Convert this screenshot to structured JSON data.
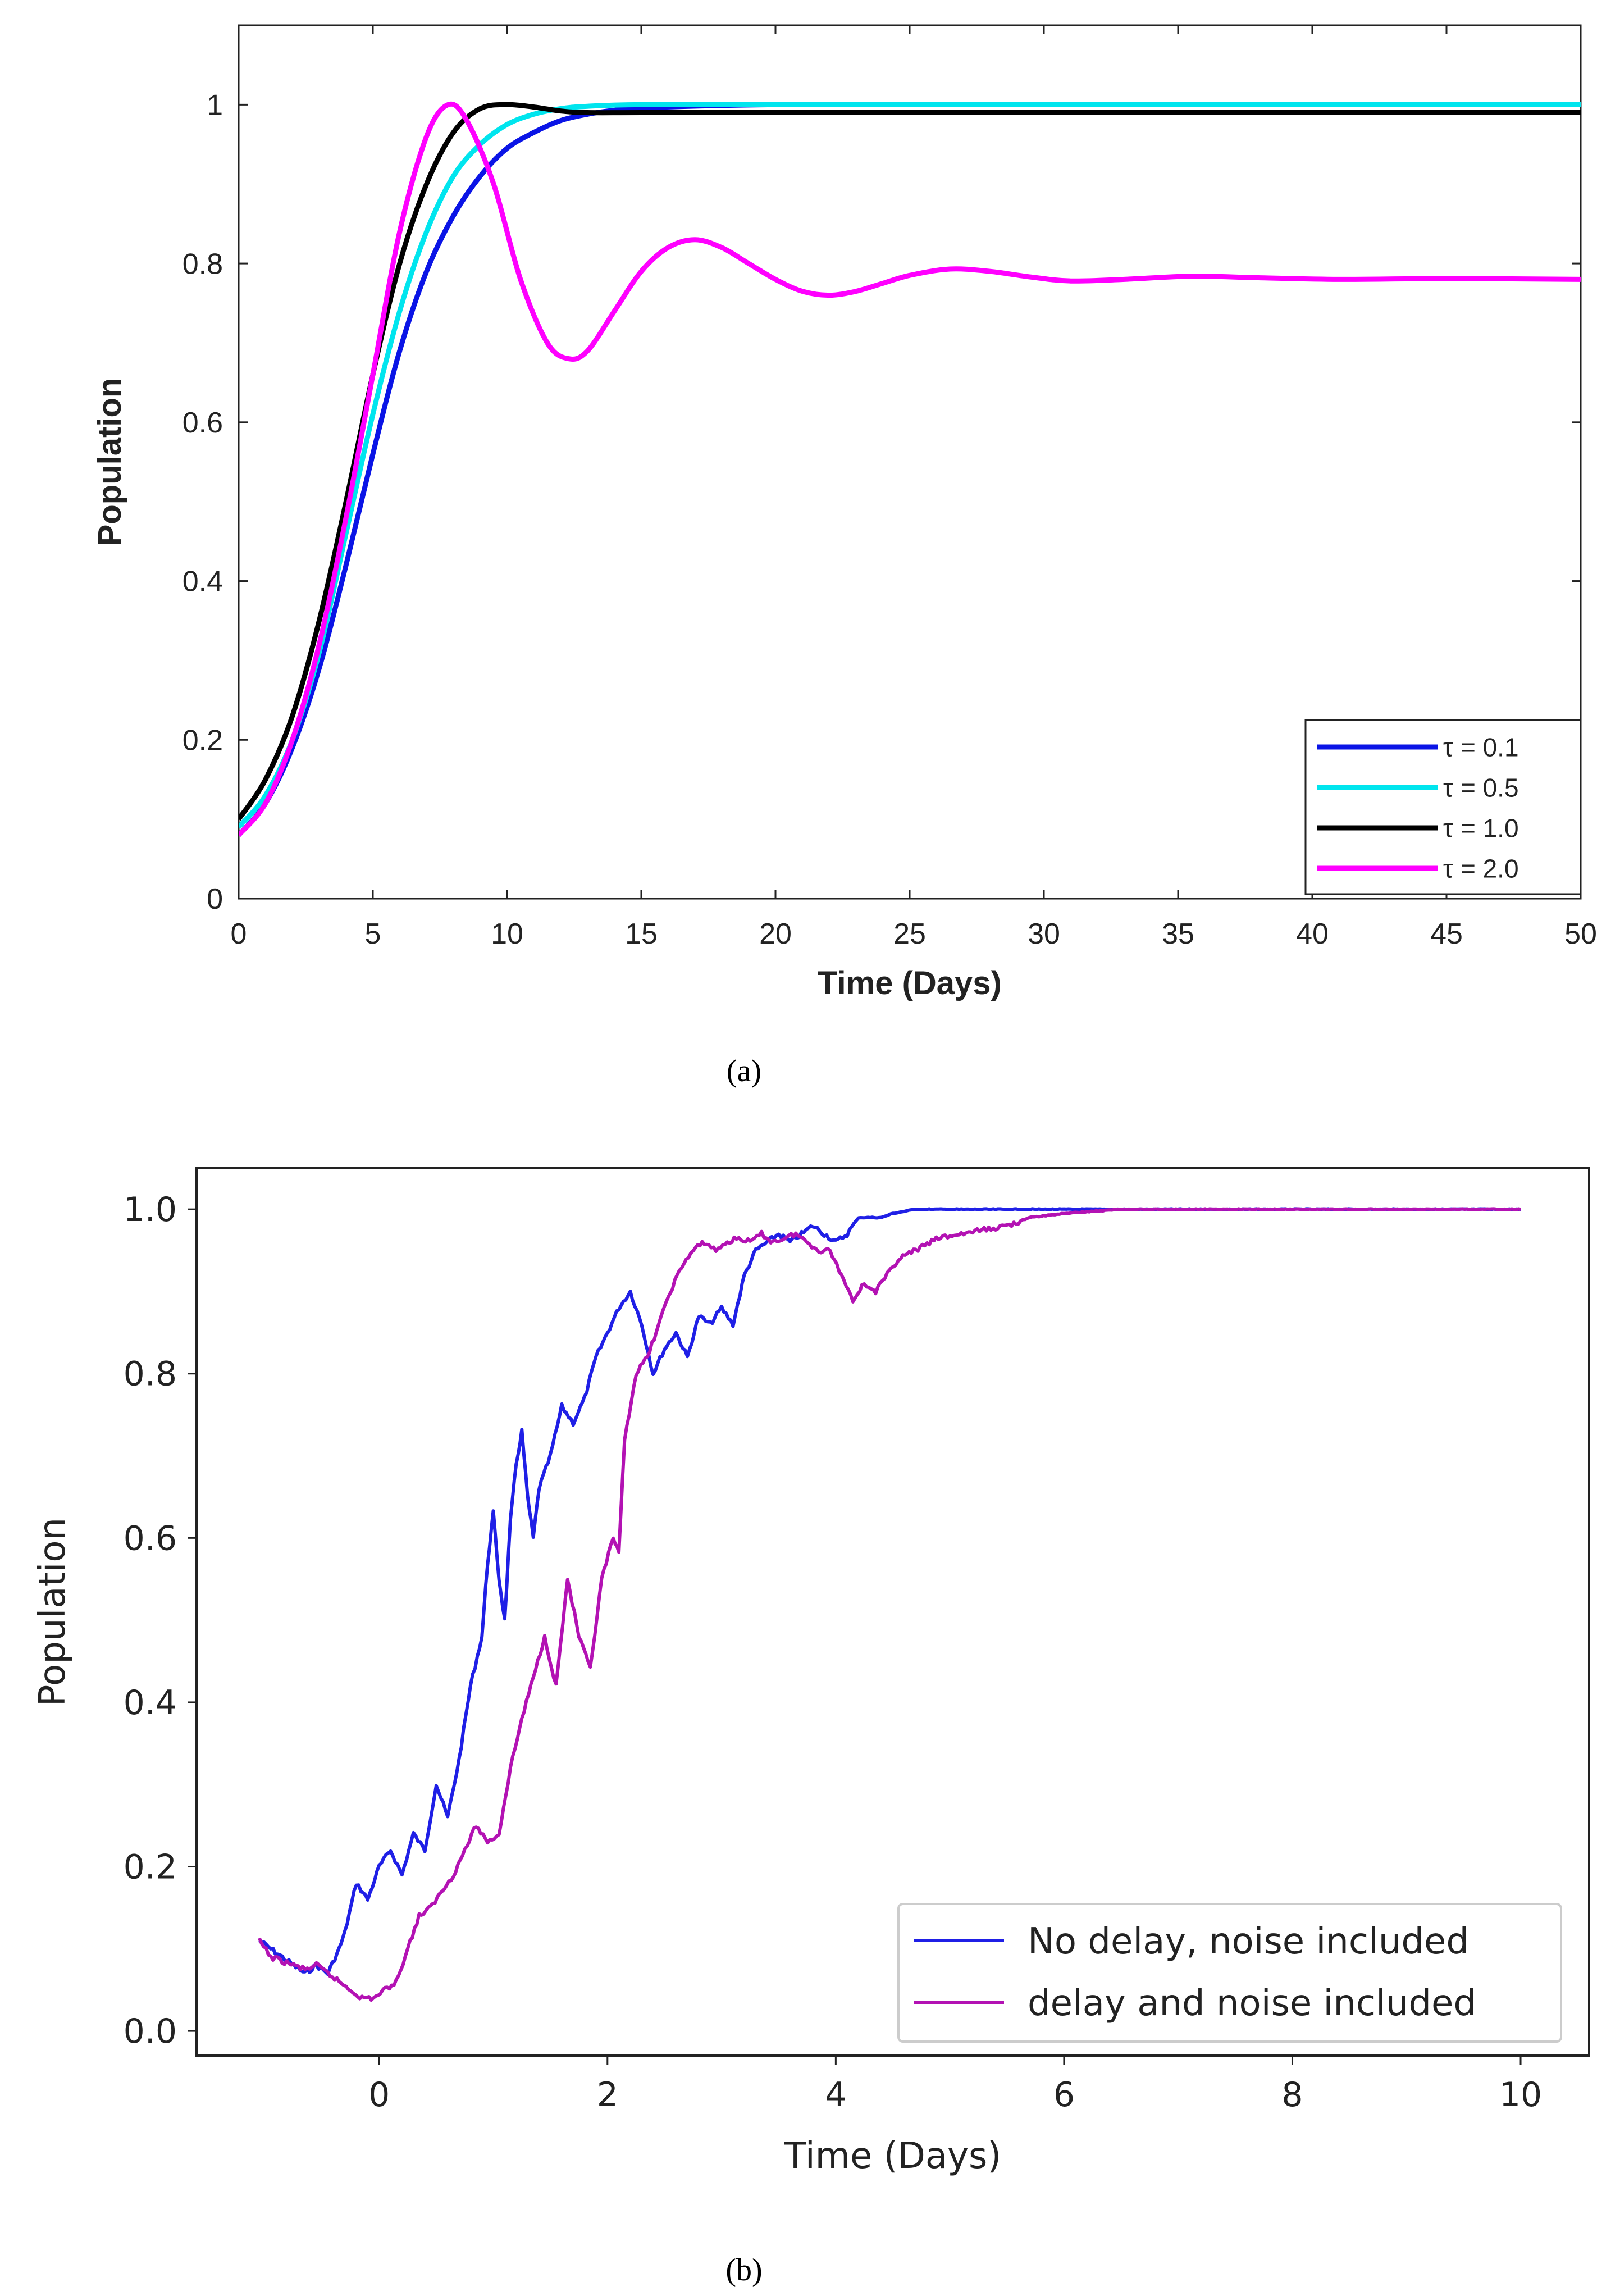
{
  "chart_data": [
    {
      "type": "line",
      "panel_label": "(a)",
      "title": "",
      "xlabel": "Time (Days)",
      "ylabel": "Population",
      "xlim": [
        0,
        50
      ],
      "ylim": [
        0,
        1.1
      ],
      "xticks": [
        0,
        5,
        10,
        15,
        20,
        25,
        30,
        35,
        40,
        45,
        50
      ],
      "xtick_labels": [
        "0",
        "5",
        "10",
        "15",
        "20",
        "25",
        "30",
        "35",
        "40",
        "45",
        "50"
      ],
      "yticks": [
        0,
        0.2,
        0.4,
        0.6,
        0.8,
        1
      ],
      "ytick_labels": [
        "0",
        "0.2",
        "0.4",
        "0.6",
        "0.8",
        "1"
      ],
      "legend_position": "bottom-right",
      "series": [
        {
          "name": "τ = 0.1",
          "color": "#0a14e6",
          "x": [
            0,
            1,
            2,
            3,
            4,
            5,
            6,
            7,
            8,
            9,
            10,
            11,
            12,
            13,
            14,
            15,
            20,
            30,
            40,
            50
          ],
          "values": [
            0.08,
            0.12,
            0.19,
            0.29,
            0.42,
            0.56,
            0.69,
            0.79,
            0.86,
            0.91,
            0.945,
            0.965,
            0.98,
            0.988,
            0.993,
            0.996,
            1.0,
            1.0,
            1.0,
            1.0
          ]
        },
        {
          "name": "τ = 0.5",
          "color": "#00e5ee",
          "x": [
            0,
            1,
            2,
            3,
            4,
            5,
            6,
            7,
            8,
            9,
            10,
            11,
            12,
            13,
            15,
            20,
            30,
            40,
            50
          ],
          "values": [
            0.09,
            0.13,
            0.2,
            0.31,
            0.46,
            0.61,
            0.74,
            0.84,
            0.91,
            0.95,
            0.975,
            0.988,
            0.995,
            0.998,
            1.0,
            1.0,
            1.0,
            1.0,
            1.0
          ]
        },
        {
          "name": "τ = 1.0",
          "color": "#000000",
          "x": [
            0,
            1,
            2,
            3,
            4,
            5,
            6,
            7,
            8,
            9,
            10,
            11,
            12,
            13,
            15,
            20,
            30,
            40,
            50
          ],
          "values": [
            0.1,
            0.15,
            0.23,
            0.35,
            0.5,
            0.66,
            0.8,
            0.9,
            0.965,
            0.995,
            1.0,
            0.997,
            0.992,
            0.99,
            0.99,
            0.99,
            0.99,
            0.99,
            0.99
          ]
        },
        {
          "name": "τ = 2.0",
          "color": "#ff00ff",
          "x": [
            0,
            1,
            2,
            3,
            4,
            5,
            6,
            7,
            7.8,
            8.5,
            9.5,
            10.5,
            11.5,
            12.3,
            13,
            14,
            15,
            16,
            17,
            18,
            19,
            20,
            21,
            22,
            23,
            24,
            25,
            26.5,
            28,
            29.5,
            31,
            33,
            35.5,
            38,
            41,
            45,
            50
          ],
          "values": [
            0.08,
            0.12,
            0.2,
            0.32,
            0.48,
            0.66,
            0.84,
            0.96,
            1.0,
            0.98,
            0.9,
            0.78,
            0.7,
            0.68,
            0.69,
            0.74,
            0.79,
            0.82,
            0.83,
            0.82,
            0.8,
            0.78,
            0.765,
            0.76,
            0.765,
            0.775,
            0.785,
            0.793,
            0.79,
            0.783,
            0.778,
            0.78,
            0.784,
            0.782,
            0.78,
            0.781,
            0.78
          ]
        }
      ]
    },
    {
      "type": "line",
      "panel_label": "(b)",
      "title": "",
      "xlabel": "Time (Days)",
      "ylabel": "Population",
      "xlim": [
        -1.6,
        10.6
      ],
      "ylim": [
        -0.03,
        1.05
      ],
      "xticks": [
        0,
        2,
        4,
        6,
        8,
        10
      ],
      "xtick_labels": [
        "0",
        "2",
        "4",
        "6",
        "8",
        "10"
      ],
      "yticks": [
        0,
        0.2,
        0.4,
        0.6,
        0.8,
        1.0
      ],
      "ytick_labels": [
        "0.0",
        "0.2",
        "0.4",
        "0.6",
        "0.8",
        "1.0"
      ],
      "legend_position": "bottom-right",
      "series": [
        {
          "name": "No delay, noise included",
          "color": "#1f1fe6",
          "x": [
            -1.05,
            -0.95,
            -0.85,
            -0.75,
            -0.65,
            -0.55,
            -0.45,
            -0.35,
            -0.3,
            -0.2,
            -0.1,
            0.0,
            0.1,
            0.2,
            0.3,
            0.4,
            0.5,
            0.6,
            0.7,
            0.8,
            0.9,
            0.95,
            1.0,
            1.05,
            1.1,
            1.15,
            1.2,
            1.25,
            1.3,
            1.35,
            1.4,
            1.5,
            1.6,
            1.7,
            1.8,
            1.9,
            2.0,
            2.1,
            2.2,
            2.3,
            2.4,
            2.5,
            2.6,
            2.7,
            2.8,
            2.9,
            3.0,
            3.1,
            3.2,
            3.3,
            3.4,
            3.5,
            3.6,
            3.7,
            3.8,
            3.9,
            4.0,
            4.1,
            4.2,
            4.3,
            4.4,
            4.5,
            4.7,
            5.0,
            5.5,
            6.0,
            7.0,
            8.0,
            9.0,
            10.0
          ],
          "values": [
            0.11,
            0.1,
            0.09,
            0.08,
            0.07,
            0.08,
            0.07,
            0.1,
            0.12,
            0.18,
            0.16,
            0.2,
            0.22,
            0.19,
            0.24,
            0.22,
            0.3,
            0.26,
            0.33,
            0.42,
            0.48,
            0.57,
            0.63,
            0.55,
            0.5,
            0.62,
            0.69,
            0.73,
            0.65,
            0.6,
            0.66,
            0.7,
            0.76,
            0.74,
            0.77,
            0.82,
            0.85,
            0.88,
            0.9,
            0.86,
            0.8,
            0.83,
            0.85,
            0.82,
            0.87,
            0.86,
            0.88,
            0.86,
            0.92,
            0.95,
            0.96,
            0.97,
            0.96,
            0.97,
            0.98,
            0.97,
            0.96,
            0.97,
            0.99,
            0.99,
            0.99,
            0.995,
            1.0,
            1.0,
            1.0,
            1.0,
            1.0,
            1.0,
            1.0,
            1.0
          ]
        },
        {
          "name": "delay and noise included",
          "color": "#b312b3",
          "x": [
            -1.05,
            -0.95,
            -0.85,
            -0.75,
            -0.65,
            -0.55,
            -0.45,
            -0.35,
            -0.25,
            -0.15,
            -0.05,
            0.05,
            0.15,
            0.25,
            0.35,
            0.45,
            0.55,
            0.65,
            0.75,
            0.85,
            0.95,
            1.05,
            1.15,
            1.25,
            1.35,
            1.45,
            1.55,
            1.65,
            1.75,
            1.85,
            1.95,
            2.05,
            2.1,
            2.15,
            2.25,
            2.35,
            2.45,
            2.55,
            2.65,
            2.75,
            2.85,
            2.95,
            3.05,
            3.15,
            3.25,
            3.35,
            3.45,
            3.55,
            3.65,
            3.75,
            3.85,
            3.95,
            4.05,
            4.15,
            4.25,
            4.35,
            4.45,
            4.55,
            4.7,
            4.9,
            5.1,
            5.3,
            5.5,
            5.7,
            6.0,
            6.5,
            7.0,
            8.0,
            9.0,
            10.0
          ],
          "values": [
            0.11,
            0.09,
            0.085,
            0.08,
            0.075,
            0.08,
            0.07,
            0.06,
            0.05,
            0.04,
            0.04,
            0.05,
            0.06,
            0.1,
            0.14,
            0.15,
            0.17,
            0.19,
            0.22,
            0.25,
            0.23,
            0.24,
            0.32,
            0.38,
            0.43,
            0.48,
            0.42,
            0.55,
            0.48,
            0.44,
            0.55,
            0.6,
            0.58,
            0.72,
            0.8,
            0.82,
            0.86,
            0.9,
            0.93,
            0.95,
            0.96,
            0.95,
            0.96,
            0.965,
            0.96,
            0.97,
            0.96,
            0.965,
            0.97,
            0.96,
            0.95,
            0.95,
            0.92,
            0.89,
            0.91,
            0.9,
            0.92,
            0.94,
            0.95,
            0.965,
            0.97,
            0.975,
            0.98,
            0.99,
            0.995,
            1.0,
            1.0,
            1.0,
            1.0,
            1.0
          ]
        }
      ]
    }
  ]
}
